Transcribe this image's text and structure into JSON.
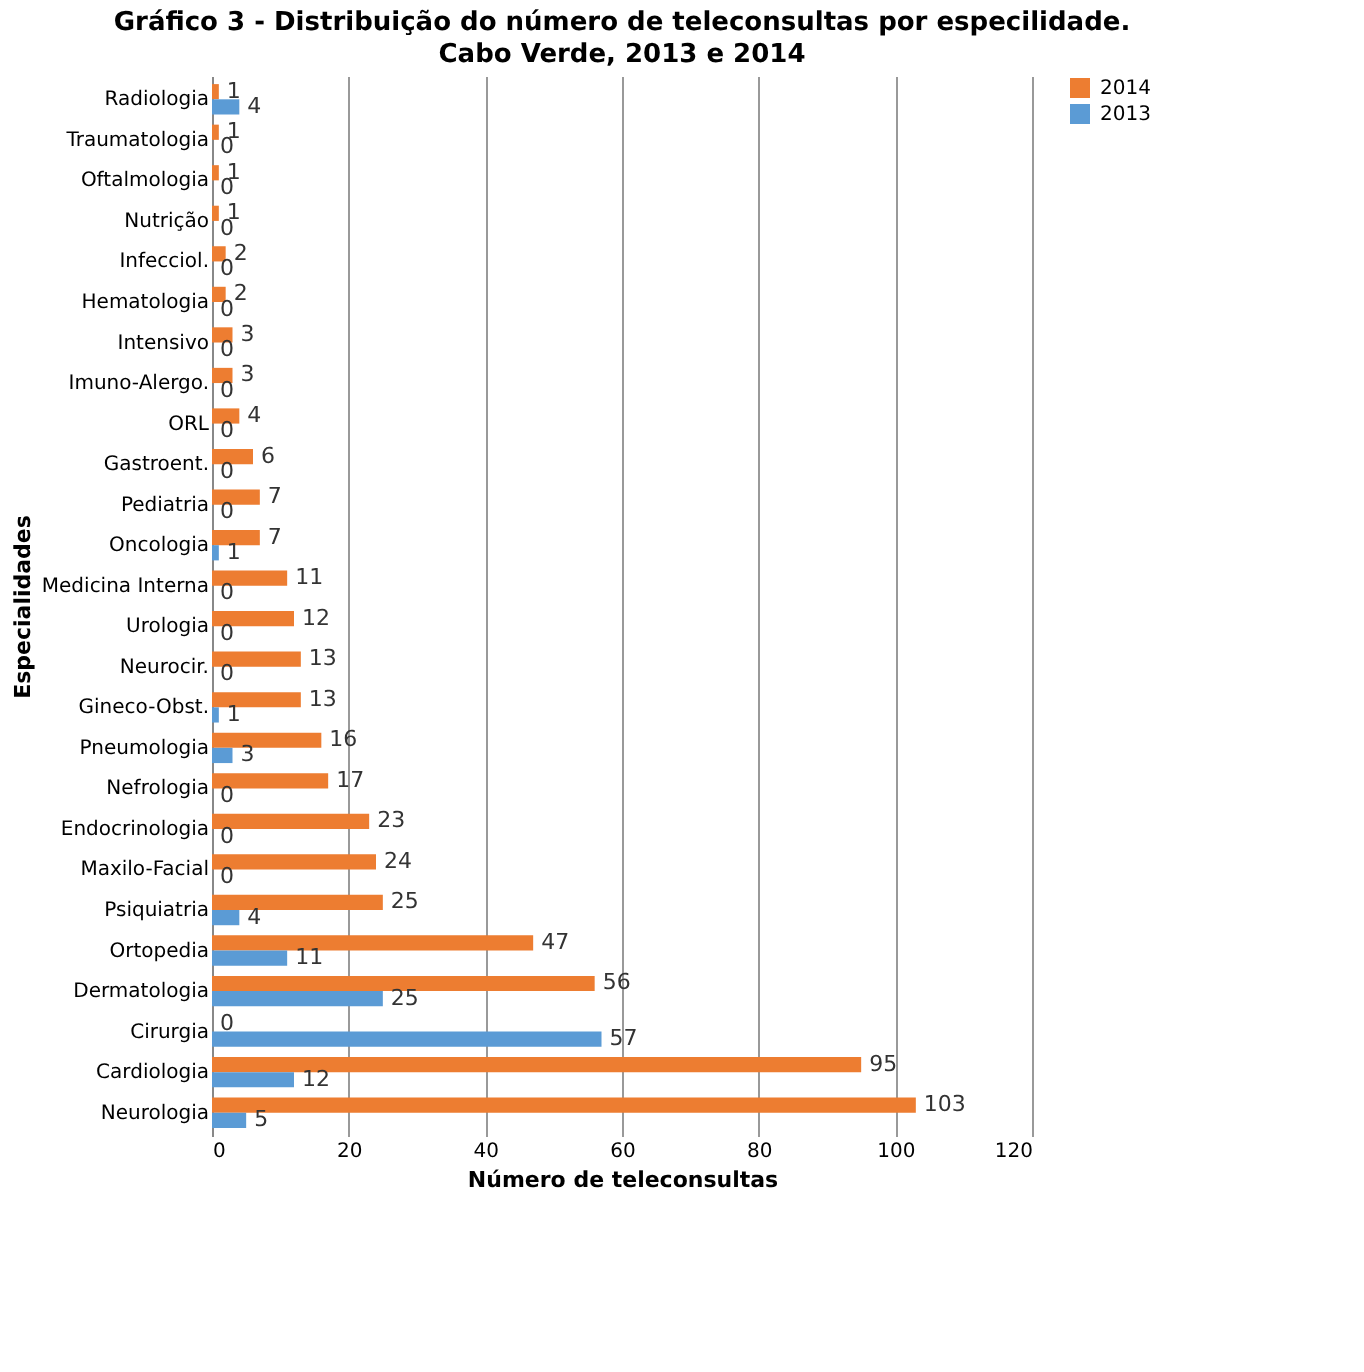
{
  "chart_data": {
    "type": "bar",
    "orientation": "horizontal",
    "title": "Gráfico 3 - Distribuição do número de teleconsultas por especilidade.",
    "subtitle": "Cabo Verde, 2013 e 2014",
    "xlabel": "Número de teleconsultas",
    "ylabel": "Especialidades",
    "categories": [
      "Radiologia",
      "Traumatologia",
      "Oftalmologia",
      "Nutrição",
      "Infecciol.",
      "Hematologia",
      "Intensivo",
      "Imuno-Alergo.",
      "ORL",
      "Gastroent.",
      "Pediatria",
      "Oncologia",
      "Medicina Interna",
      "Urologia",
      "Neurocir.",
      "Gineco-Obst.",
      "Pneumologia",
      "Nefrologia",
      "Endocrinologia",
      "Maxilo-Facial",
      "Psiquiatria",
      "Ortopedia",
      "Dermatologia",
      "Cirurgia",
      "Cardiologia",
      "Neurologia"
    ],
    "series": [
      {
        "name": "2014",
        "color": "#ed7d31",
        "values": [
          1,
          1,
          1,
          1,
          2,
          2,
          3,
          3,
          4,
          6,
          7,
          7,
          11,
          12,
          13,
          13,
          16,
          17,
          23,
          24,
          25,
          47,
          56,
          0,
          95,
          103
        ]
      },
      {
        "name": "2013",
        "color": "#5b9bd5",
        "values": [
          4,
          0,
          0,
          0,
          0,
          0,
          0,
          0,
          0,
          0,
          0,
          1,
          0,
          0,
          0,
          1,
          3,
          0,
          0,
          0,
          4,
          11,
          25,
          57,
          12,
          5
        ]
      }
    ],
    "xlim": [
      0,
      120
    ],
    "xticks": [
      0,
      20,
      40,
      60,
      80,
      100,
      120
    ],
    "grid": "x",
    "legend": "right",
    "data_labels": true
  }
}
